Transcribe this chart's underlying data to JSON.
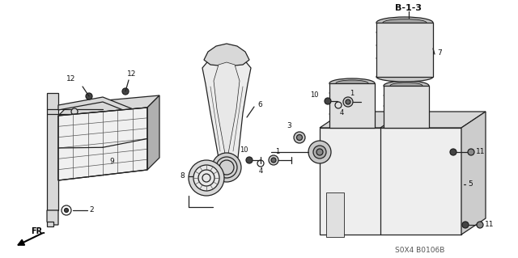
{
  "title": "B-1-3",
  "part_code": "S0X4 B0106B",
  "fr_label": "FR.",
  "bg": "#ffffff",
  "lc": "#222222",
  "gray1": "#c8c8c8",
  "gray2": "#b0b0b0",
  "gray3": "#d8d8d8"
}
